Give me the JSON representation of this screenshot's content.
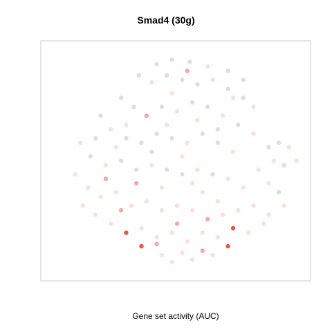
{
  "chart_data": {
    "type": "scatter",
    "title": "Smad4 (30g)",
    "xlabel": "Gene set activity (AUC)",
    "ylabel": "",
    "grid": false,
    "axes_visible": false,
    "legend": "none",
    "point_colors": {
      "inactive": "#d3d3d3",
      "low": "#fbdcd8",
      "medium": "#f4a09a",
      "high": "#e8413a"
    },
    "panel_border": "#c8c8c8",
    "series": [
      {
        "name": "",
        "points": [
          [
            0.42,
            0.93,
            0
          ],
          [
            0.48,
            0.95,
            0
          ],
          [
            0.55,
            0.94,
            0
          ],
          [
            0.62,
            0.92,
            0.3
          ],
          [
            0.7,
            0.9,
            0
          ],
          [
            0.76,
            0.86,
            0
          ],
          [
            0.35,
            0.88,
            0
          ],
          [
            0.4,
            0.85,
            0.2
          ],
          [
            0.46,
            0.88,
            0
          ],
          [
            0.52,
            0.86,
            0
          ],
          [
            0.58,
            0.84,
            0
          ],
          [
            0.64,
            0.86,
            0.2
          ],
          [
            0.7,
            0.82,
            0
          ],
          [
            0.76,
            0.78,
            0
          ],
          [
            0.8,
            0.74,
            0.2
          ],
          [
            0.28,
            0.78,
            0
          ],
          [
            0.33,
            0.74,
            0
          ],
          [
            0.38,
            0.7,
            0.6
          ],
          [
            0.44,
            0.74,
            0
          ],
          [
            0.5,
            0.72,
            0.4
          ],
          [
            0.56,
            0.76,
            0
          ],
          [
            0.62,
            0.74,
            0
          ],
          [
            0.68,
            0.7,
            0.3
          ],
          [
            0.74,
            0.66,
            0
          ],
          [
            0.2,
            0.7,
            0
          ],
          [
            0.24,
            0.64,
            0.2
          ],
          [
            0.3,
            0.6,
            0
          ],
          [
            0.36,
            0.58,
            0
          ],
          [
            0.42,
            0.62,
            0
          ],
          [
            0.48,
            0.6,
            0
          ],
          [
            0.54,
            0.58,
            0.2
          ],
          [
            0.6,
            0.62,
            0
          ],
          [
            0.66,
            0.58,
            0
          ],
          [
            0.72,
            0.54,
            0.2
          ],
          [
            0.12,
            0.58,
            0.3
          ],
          [
            0.16,
            0.52,
            0
          ],
          [
            0.22,
            0.48,
            0.3
          ],
          [
            0.28,
            0.5,
            0
          ],
          [
            0.34,
            0.46,
            0
          ],
          [
            0.4,
            0.48,
            0.2
          ],
          [
            0.46,
            0.46,
            0
          ],
          [
            0.52,
            0.44,
            0
          ],
          [
            0.58,
            0.46,
            0.3
          ],
          [
            0.64,
            0.44,
            0
          ],
          [
            0.7,
            0.42,
            0.2
          ],
          [
            0.76,
            0.38,
            0.3
          ],
          [
            0.1,
            0.44,
            0.3
          ],
          [
            0.15,
            0.38,
            0.4
          ],
          [
            0.2,
            0.34,
            0.3
          ],
          [
            0.26,
            0.36,
            0.2
          ],
          [
            0.32,
            0.3,
            0.3
          ],
          [
            0.38,
            0.32,
            0.2
          ],
          [
            0.44,
            0.28,
            0.3
          ],
          [
            0.5,
            0.3,
            0.2
          ],
          [
            0.56,
            0.28,
            0.3
          ],
          [
            0.62,
            0.24,
            0.6
          ],
          [
            0.68,
            0.26,
            0.3
          ],
          [
            0.74,
            0.28,
            0.2
          ],
          [
            0.8,
            0.3,
            0.3
          ],
          [
            0.86,
            0.26,
            0.2
          ],
          [
            0.13,
            0.3,
            0.3
          ],
          [
            0.18,
            0.26,
            0.2
          ],
          [
            0.24,
            0.22,
            0.3
          ],
          [
            0.3,
            0.18,
            0.8
          ],
          [
            0.36,
            0.2,
            0.4
          ],
          [
            0.42,
            0.16,
            0.3
          ],
          [
            0.48,
            0.18,
            0.2
          ],
          [
            0.54,
            0.14,
            0.3
          ],
          [
            0.6,
            0.18,
            0.2
          ],
          [
            0.66,
            0.16,
            0.3
          ],
          [
            0.72,
            0.2,
            0.9
          ],
          [
            0.78,
            0.18,
            0.3
          ],
          [
            0.84,
            0.22,
            0.3
          ],
          [
            0.44,
            0.08,
            0.3
          ],
          [
            0.48,
            0.05,
            0.4
          ],
          [
            0.52,
            0.09,
            0.3
          ],
          [
            0.56,
            0.06,
            0.3
          ],
          [
            0.6,
            0.1,
            0.5
          ],
          [
            0.64,
            0.08,
            0.3
          ],
          [
            0.7,
            0.12,
            1.0
          ],
          [
            0.36,
            0.12,
            0.9
          ],
          [
            0.42,
            0.13,
            0.6
          ],
          [
            0.86,
            0.56,
            0
          ],
          [
            0.9,
            0.58,
            0
          ],
          [
            0.94,
            0.56,
            0.2
          ],
          [
            0.97,
            0.5,
            0.3
          ],
          [
            0.88,
            0.5,
            0.2
          ],
          [
            0.92,
            0.48,
            0
          ],
          [
            0.82,
            0.46,
            0.3
          ],
          [
            0.86,
            0.4,
            0.2
          ],
          [
            0.9,
            0.36,
            0
          ],
          [
            0.92,
            0.3,
            0.3
          ],
          [
            0.8,
            0.62,
            0.2
          ],
          [
            0.66,
            0.64,
            0
          ],
          [
            0.58,
            0.68,
            0.3
          ],
          [
            0.46,
            0.66,
            0.2
          ],
          [
            0.52,
            0.52,
            0.3
          ],
          [
            0.4,
            0.54,
            0
          ],
          [
            0.3,
            0.66,
            0.2
          ],
          [
            0.34,
            0.4,
            0.5
          ],
          [
            0.22,
            0.42,
            0.6
          ],
          [
            0.6,
            0.36,
            0.4
          ],
          [
            0.56,
            0.4,
            0.2
          ],
          [
            0.28,
            0.28,
            0.7
          ],
          [
            0.5,
            0.22,
            0.5
          ],
          [
            0.66,
            0.32,
            0.3
          ],
          [
            0.44,
            0.38,
            0.3
          ],
          [
            0.18,
            0.6,
            0
          ],
          [
            0.54,
            0.9,
            0.7
          ],
          [
            0.48,
            0.8,
            0.3
          ],
          [
            0.72,
            0.78,
            0.2
          ],
          [
            0.26,
            0.56,
            0.3
          ]
        ]
      }
    ]
  }
}
